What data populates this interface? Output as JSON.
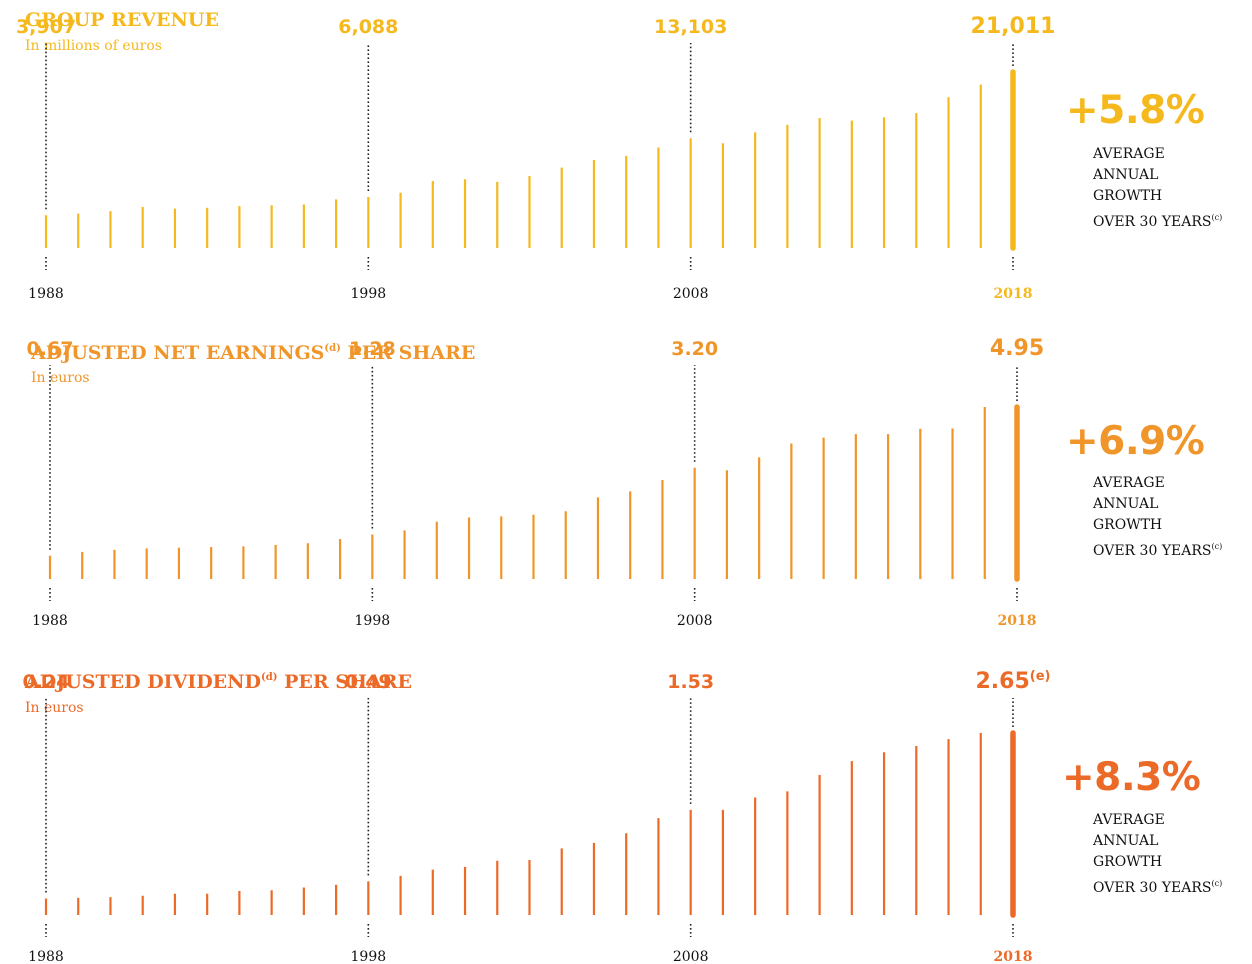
{
  "panels": [
    {
      "title": "GROUP REVENUE",
      "title_super": "",
      "title_rest": "",
      "subtitle": "In millions of euros",
      "color": "#F5B91E",
      "growth": "+5.8%",
      "growth_caption": [
        "AVERAGE",
        "ANNUAL",
        "GROWTH",
        "OVER 30 YEARS"
      ],
      "growth_caption_sup": "(c)"
    },
    {
      "title": "ADJUSTED NET EARNINGS",
      "title_super": "(d)",
      "title_rest": " PER SHARE",
      "subtitle": "In euros",
      "color": "#F0952A",
      "growth": "+6.9%",
      "growth_caption": [
        "AVERAGE",
        "ANNUAL",
        "GROWTH",
        "OVER 30 YEARS"
      ],
      "growth_caption_sup": "(c)"
    },
    {
      "title": "ADJUSTED DIVIDEND",
      "title_super": "(d)",
      "title_rest": " PER SHARE",
      "subtitle": "In euros",
      "color": "#EC6A28",
      "growth": "+8.3%",
      "growth_caption": [
        "AVERAGE",
        "ANNUAL",
        "GROWTH",
        "OVER 30 YEARS"
      ],
      "growth_caption_sup": "(c)"
    }
  ],
  "chart_data": [
    {
      "type": "bar",
      "title": "GROUP REVENUE",
      "subtitle": "In millions of euros",
      "x": [
        1988,
        1989,
        1990,
        1991,
        1992,
        1993,
        1994,
        1995,
        1996,
        1997,
        1998,
        1999,
        2000,
        2001,
        2002,
        2003,
        2004,
        2005,
        2006,
        2007,
        2008,
        2009,
        2010,
        2011,
        2012,
        2013,
        2014,
        2015,
        2016,
        2017,
        2018
      ],
      "values": [
        3907,
        4100,
        4400,
        4900,
        4700,
        4800,
        5000,
        5100,
        5200,
        5800,
        6088,
        6600,
        8000,
        8200,
        7900,
        8600,
        9600,
        10500,
        11000,
        12000,
        13103,
        12500,
        13800,
        14700,
        15500,
        15200,
        15600,
        16100,
        18000,
        19500,
        21011
      ],
      "tick_labels": [
        "1988",
        "1998",
        "2008",
        "2018"
      ],
      "data_labels": [
        {
          "x": 1988,
          "text": "3,907"
        },
        {
          "x": 1998,
          "text": "6,088"
        },
        {
          "x": 2008,
          "text": "13,103"
        },
        {
          "x": 2018,
          "text": "21,011"
        }
      ],
      "ylim": [
        0,
        21011
      ],
      "highlight_last": true
    },
    {
      "type": "bar",
      "title": "ADJUSTED NET EARNINGS(d) PER SHARE",
      "subtitle": "In euros",
      "x": [
        1988,
        1989,
        1990,
        1991,
        1992,
        1993,
        1994,
        1995,
        1996,
        1997,
        1998,
        1999,
        2000,
        2001,
        2002,
        2003,
        2004,
        2005,
        2006,
        2007,
        2008,
        2009,
        2010,
        2011,
        2012,
        2013,
        2014,
        2015,
        2016,
        2017,
        2018
      ],
      "values": [
        0.67,
        0.78,
        0.84,
        0.88,
        0.9,
        0.92,
        0.94,
        0.98,
        1.03,
        1.15,
        1.28,
        1.4,
        1.65,
        1.77,
        1.8,
        1.85,
        1.95,
        2.35,
        2.52,
        2.85,
        3.2,
        3.13,
        3.5,
        3.9,
        4.07,
        4.17,
        4.17,
        4.32,
        4.33,
        4.95,
        4.95
      ],
      "tick_labels": [
        "1988",
        "1998",
        "2008",
        "2018"
      ],
      "data_labels": [
        {
          "x": 1988,
          "text": "0.67"
        },
        {
          "x": 1998,
          "text": "1.28"
        },
        {
          "x": 2008,
          "text": "3.20"
        },
        {
          "x": 2018,
          "text": "4.95"
        }
      ],
      "ylim": [
        0,
        4.95
      ],
      "highlight_last": true
    },
    {
      "type": "bar",
      "title": "ADJUSTED DIVIDEND(d) PER SHARE",
      "subtitle": "In euros",
      "x": [
        1988,
        1989,
        1990,
        1991,
        1992,
        1993,
        1994,
        1995,
        1996,
        1997,
        1998,
        1999,
        2000,
        2001,
        2002,
        2003,
        2004,
        2005,
        2006,
        2007,
        2008,
        2009,
        2010,
        2011,
        2012,
        2013,
        2014,
        2015,
        2016,
        2017,
        2018
      ],
      "values": [
        0.24,
        0.25,
        0.26,
        0.28,
        0.31,
        0.31,
        0.35,
        0.36,
        0.4,
        0.44,
        0.49,
        0.57,
        0.66,
        0.7,
        0.79,
        0.8,
        0.97,
        1.05,
        1.19,
        1.41,
        1.53,
        1.53,
        1.71,
        1.8,
        2.04,
        2.24,
        2.37,
        2.46,
        2.56,
        2.65,
        2.65
      ],
      "tick_labels": [
        "1988",
        "1998",
        "2008",
        "2018"
      ],
      "data_labels": [
        {
          "x": 1988,
          "text": "0.24"
        },
        {
          "x": 1998,
          "text": "0.49"
        },
        {
          "x": 2008,
          "text": "1.53"
        },
        {
          "x": 2018,
          "text": "2.65",
          "sup": "(e)"
        }
      ],
      "ylim": [
        0,
        2.65
      ],
      "highlight_last": true
    }
  ]
}
